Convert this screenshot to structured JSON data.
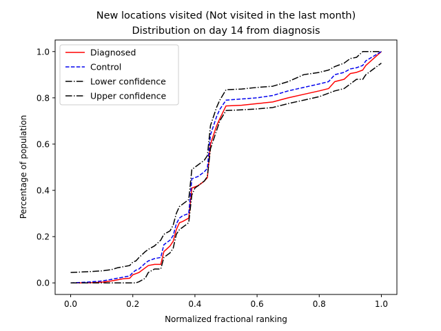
{
  "chart_data": {
    "type": "line",
    "title": "New locations visited (Not visited in the last month)",
    "subtitle": "Distribution on day 14 from diagnosis",
    "xlabel": "Normalized fractional ranking",
    "ylabel": "Percentage of population",
    "xlim": [
      -0.05,
      1.05
    ],
    "ylim": [
      -0.05,
      1.05
    ],
    "xticks": [
      0.0,
      0.2,
      0.4,
      0.6,
      0.8,
      1.0
    ],
    "xtick_labels": [
      "0.0",
      "0.2",
      "0.4",
      "0.6",
      "0.8",
      "1.0"
    ],
    "yticks": [
      0.0,
      0.2,
      0.4,
      0.6,
      0.8,
      1.0
    ],
    "ytick_labels": [
      "0.0",
      "0.2",
      "0.4",
      "0.6",
      "0.8",
      "1.0"
    ],
    "grid": false,
    "legend_position": "top-left",
    "series": [
      {
        "name": "Diagnosed",
        "color": "#ff0000",
        "dash": "solid",
        "x": [
          0.0,
          0.05,
          0.1,
          0.13,
          0.15,
          0.17,
          0.19,
          0.2,
          0.21,
          0.22,
          0.24,
          0.25,
          0.27,
          0.29,
          0.3,
          0.32,
          0.33,
          0.34,
          0.35,
          0.36,
          0.38,
          0.39,
          0.4,
          0.41,
          0.43,
          0.44,
          0.45,
          0.46,
          0.47,
          0.48,
          0.5,
          0.55,
          0.6,
          0.65,
          0.7,
          0.75,
          0.8,
          0.83,
          0.85,
          0.88,
          0.9,
          0.92,
          0.94,
          0.95,
          1.0
        ],
        "y": [
          0.0,
          0.0,
          0.003,
          0.008,
          0.013,
          0.018,
          0.02,
          0.035,
          0.04,
          0.045,
          0.065,
          0.075,
          0.08,
          0.08,
          0.135,
          0.16,
          0.18,
          0.23,
          0.26,
          0.265,
          0.28,
          0.41,
          0.415,
          0.42,
          0.44,
          0.455,
          0.6,
          0.64,
          0.68,
          0.71,
          0.765,
          0.768,
          0.775,
          0.782,
          0.8,
          0.815,
          0.83,
          0.84,
          0.87,
          0.88,
          0.905,
          0.91,
          0.92,
          0.94,
          1.0
        ]
      },
      {
        "name": "Control",
        "color": "#0000ee",
        "dash": "dashed",
        "x": [
          0.0,
          0.05,
          0.1,
          0.13,
          0.15,
          0.17,
          0.19,
          0.2,
          0.21,
          0.22,
          0.24,
          0.25,
          0.27,
          0.29,
          0.3,
          0.32,
          0.33,
          0.34,
          0.35,
          0.36,
          0.38,
          0.39,
          0.4,
          0.41,
          0.43,
          0.44,
          0.45,
          0.46,
          0.47,
          0.48,
          0.5,
          0.55,
          0.6,
          0.65,
          0.7,
          0.75,
          0.8,
          0.83,
          0.85,
          0.88,
          0.9,
          0.92,
          0.94,
          0.95,
          1.0
        ],
        "y": [
          0.0,
          0.003,
          0.008,
          0.015,
          0.02,
          0.025,
          0.03,
          0.045,
          0.055,
          0.06,
          0.085,
          0.095,
          0.105,
          0.11,
          0.165,
          0.185,
          0.205,
          0.255,
          0.28,
          0.29,
          0.3,
          0.45,
          0.455,
          0.46,
          0.48,
          0.495,
          0.64,
          0.68,
          0.72,
          0.75,
          0.79,
          0.795,
          0.8,
          0.81,
          0.83,
          0.845,
          0.86,
          0.87,
          0.9,
          0.91,
          0.925,
          0.93,
          0.94,
          0.96,
          1.0
        ]
      },
      {
        "name": "Lower confidence",
        "color": "#000000",
        "dash": "dashdot",
        "x": [
          0.0,
          0.05,
          0.1,
          0.13,
          0.15,
          0.17,
          0.19,
          0.2,
          0.21,
          0.22,
          0.24,
          0.25,
          0.27,
          0.29,
          0.3,
          0.32,
          0.33,
          0.34,
          0.35,
          0.36,
          0.38,
          0.39,
          0.4,
          0.41,
          0.43,
          0.44,
          0.45,
          0.46,
          0.47,
          0.48,
          0.5,
          0.55,
          0.6,
          0.65,
          0.7,
          0.75,
          0.8,
          0.83,
          0.85,
          0.88,
          0.9,
          0.92,
          0.94,
          0.95,
          1.0
        ],
        "y": [
          0.0,
          0.0,
          0.0,
          0.0,
          0.0,
          0.0,
          0.0,
          0.0,
          0.0,
          0.005,
          0.02,
          0.045,
          0.06,
          0.06,
          0.11,
          0.13,
          0.15,
          0.21,
          0.23,
          0.24,
          0.26,
          0.38,
          0.41,
          0.42,
          0.44,
          0.46,
          0.58,
          0.62,
          0.66,
          0.7,
          0.745,
          0.748,
          0.752,
          0.758,
          0.775,
          0.79,
          0.805,
          0.82,
          0.83,
          0.84,
          0.86,
          0.88,
          0.88,
          0.9,
          0.95
        ]
      },
      {
        "name": "Upper confidence",
        "color": "#000000",
        "dash": "dashdot",
        "x": [
          0.0,
          0.05,
          0.1,
          0.13,
          0.15,
          0.17,
          0.19,
          0.2,
          0.21,
          0.22,
          0.24,
          0.25,
          0.27,
          0.29,
          0.3,
          0.32,
          0.33,
          0.34,
          0.35,
          0.36,
          0.38,
          0.39,
          0.4,
          0.41,
          0.43,
          0.44,
          0.45,
          0.46,
          0.47,
          0.48,
          0.5,
          0.55,
          0.6,
          0.65,
          0.7,
          0.75,
          0.8,
          0.83,
          0.85,
          0.88,
          0.9,
          0.92,
          0.94,
          0.95,
          1.0
        ],
        "y": [
          0.045,
          0.048,
          0.052,
          0.057,
          0.065,
          0.07,
          0.075,
          0.09,
          0.095,
          0.11,
          0.135,
          0.145,
          0.16,
          0.185,
          0.21,
          0.225,
          0.25,
          0.3,
          0.33,
          0.34,
          0.36,
          0.49,
          0.5,
          0.51,
          0.53,
          0.55,
          0.68,
          0.72,
          0.76,
          0.79,
          0.835,
          0.838,
          0.845,
          0.85,
          0.87,
          0.9,
          0.91,
          0.92,
          0.935,
          0.95,
          0.97,
          0.975,
          1.0,
          1.0,
          1.0
        ]
      }
    ]
  }
}
